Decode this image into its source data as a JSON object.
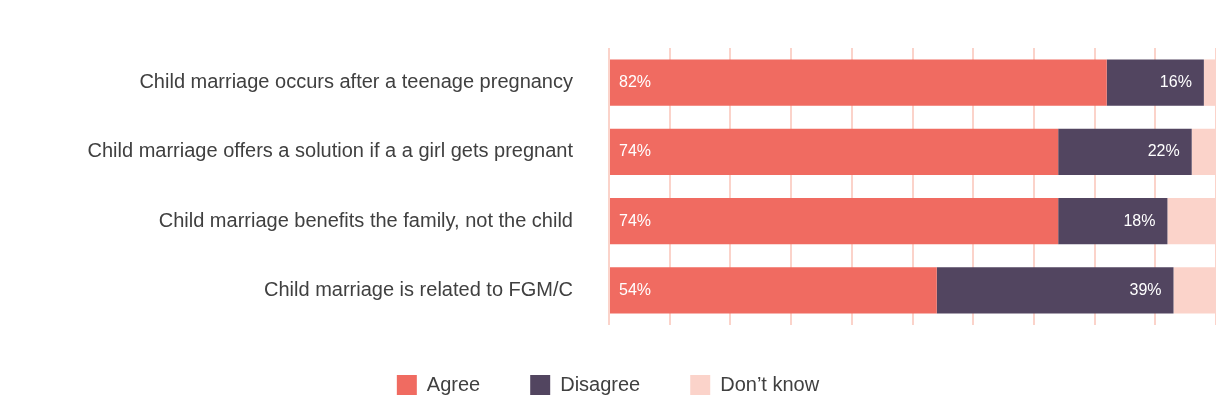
{
  "chart_data": {
    "type": "bar",
    "orientation": "horizontal",
    "stacked": true,
    "categories": [
      "Child marriage occurs after a teenage pregnancy",
      "Child marriage offers a solution if a a girl gets pregnant",
      "Child marriage benefits the family, not the child",
      "Child marriage is related to FGM/C"
    ],
    "series": [
      {
        "name": "Agree",
        "color": "#f06b61",
        "values": [
          82,
          74,
          74,
          54
        ],
        "value_labels": [
          "82%",
          "74%",
          "74%",
          "54%"
        ]
      },
      {
        "name": "Disagree",
        "color": "#524560",
        "values": [
          16,
          22,
          18,
          39
        ],
        "value_labels": [
          "16%",
          "22%",
          "18%",
          "39%"
        ]
      },
      {
        "name": "Don’t know",
        "color": "#fbd3ca",
        "values": [
          2,
          4,
          8,
          7
        ]
      }
    ],
    "xlim": [
      0,
      100
    ],
    "xticks": [
      {
        "value": 0,
        "label": null
      },
      {
        "value": 10,
        "label": null
      },
      {
        "value": 20,
        "label": null
      },
      {
        "value": 30,
        "label": null
      },
      {
        "value": 40,
        "label": null
      },
      {
        "value": 50,
        "label": null
      },
      {
        "value": 60,
        "label": null
      },
      {
        "value": 70,
        "label": null
      },
      {
        "value": 80,
        "label": null
      },
      {
        "value": 90,
        "label": null
      },
      {
        "value": 100,
        "label": null
      }
    ],
    "tick_labels": "y",
    "grid": "x",
    "legend": "bottom"
  }
}
